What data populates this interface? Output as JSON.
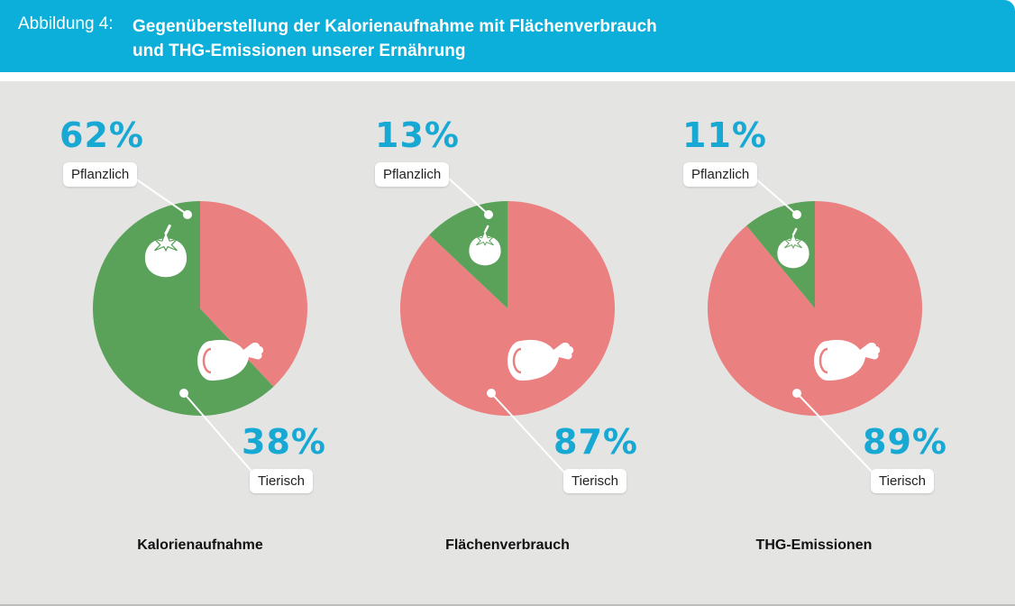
{
  "header": {
    "prefix": "Abbildung 4:",
    "title_line1": "Gegenüberstellung der Kalorienaufnahme mit Flächenverbrauch",
    "title_line2": "und THG-Emissionen unserer Ernährung"
  },
  "colors": {
    "plant": "#5aa25a",
    "animal": "#ea8080",
    "accent": "#17a9d3",
    "header_bg": "#0bafd9",
    "panel_bg": "#e4e4e3"
  },
  "chart_data": [
    {
      "type": "pie",
      "title": "Kalorienaufnahme",
      "categories": [
        "Pflanzlich",
        "Tierisch"
      ],
      "values": [
        62,
        38
      ],
      "value_labels": [
        "62%",
        "38%"
      ],
      "icons": [
        "tomato-icon",
        "ham-icon"
      ]
    },
    {
      "type": "pie",
      "title": "Flächenverbrauch",
      "categories": [
        "Pflanzlich",
        "Tierisch"
      ],
      "values": [
        13,
        87
      ],
      "value_labels": [
        "13%",
        "87%"
      ],
      "icons": [
        "tomato-icon",
        "ham-icon"
      ]
    },
    {
      "type": "pie",
      "title": "THG-Emissionen",
      "categories": [
        "Pflanzlich",
        "Tierisch"
      ],
      "values": [
        11,
        89
      ],
      "value_labels": [
        "11%",
        "89%"
      ],
      "icons": [
        "tomato-icon",
        "ham-icon"
      ]
    }
  ]
}
